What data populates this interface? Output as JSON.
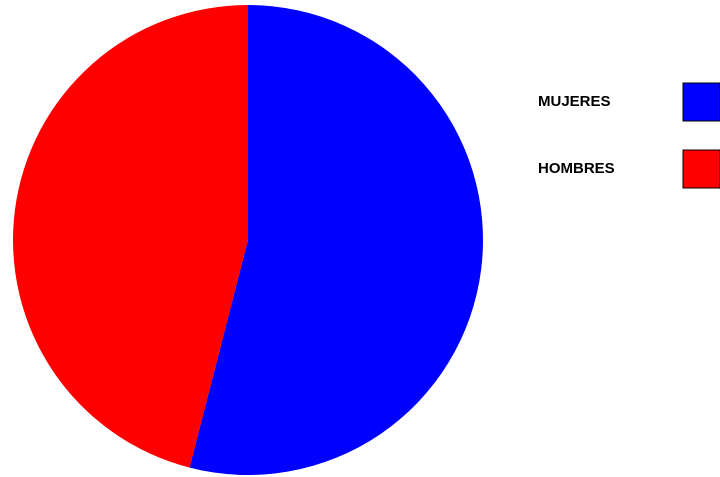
{
  "chart_data": {
    "type": "pie",
    "categories": [
      "MUJERES",
      "HOMBRES"
    ],
    "values": [
      54,
      46
    ],
    "colors": [
      "#0000ff",
      "#ff0000"
    ],
    "legend": "right"
  }
}
